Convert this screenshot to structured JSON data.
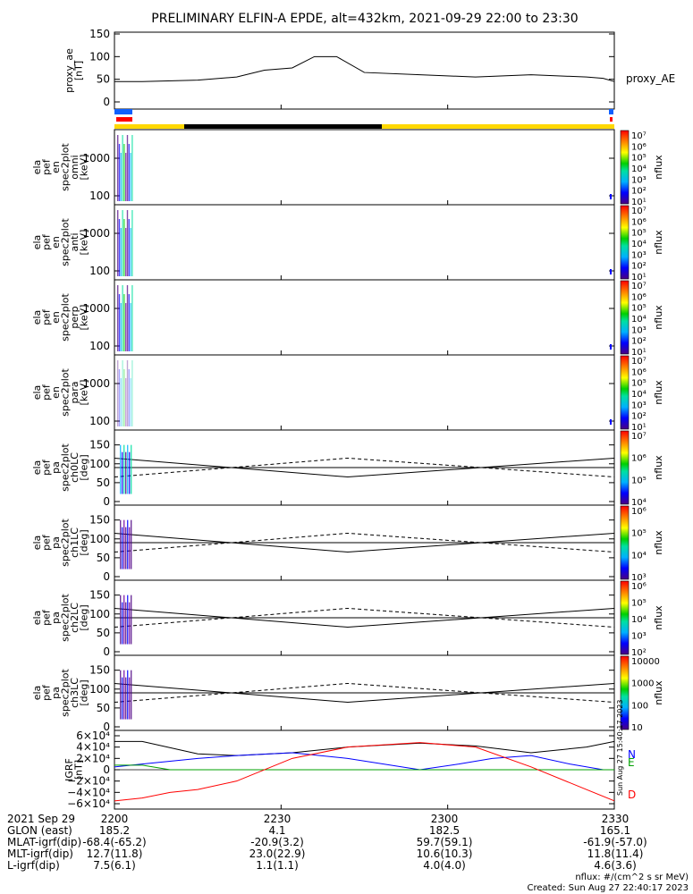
{
  "title": "PRELIMINARY ELFIN-A EPDE, alt=432km, 2021-09-29 22:00 to 23:30",
  "colors": {
    "black": "#000000",
    "blue": "#1060ff",
    "red": "#ff0000",
    "yellow": "#ffd800",
    "green": "#00a000",
    "n_blue": "#0000ff"
  },
  "panels": [
    {
      "id": "proxy_ae",
      "ylabel": [
        "proxy_ae",
        "[nT]"
      ],
      "side_label": "proxy_AE",
      "yticks": [
        "150",
        "100",
        "50",
        "0"
      ]
    },
    {
      "id": "en_omni",
      "ylabel": [
        "ela",
        "pef",
        "en",
        "spec2plot",
        "omni",
        "[keV]"
      ],
      "yticks": [
        "1000",
        "100"
      ],
      "cb_ticks": [
        "10⁷",
        "10⁶",
        "10⁵",
        "10⁴",
        "10³",
        "10²",
        "10¹"
      ],
      "cb_label": "nflux"
    },
    {
      "id": "en_anti",
      "ylabel": [
        "ela",
        "pef",
        "en",
        "spec2plot",
        "anti",
        "[keV]"
      ],
      "yticks": [
        "1000",
        "100"
      ],
      "cb_ticks": [
        "10⁷",
        "10⁶",
        "10⁵",
        "10⁴",
        "10³",
        "10²",
        "10¹"
      ],
      "cb_label": "nflux"
    },
    {
      "id": "en_perp",
      "ylabel": [
        "ela",
        "pef",
        "en",
        "spec2plot",
        "perp",
        "[keV]"
      ],
      "yticks": [
        "1000",
        "100"
      ],
      "cb_ticks": [
        "10⁷",
        "10⁶",
        "10⁵",
        "10⁴",
        "10³",
        "10²",
        "10¹"
      ],
      "cb_label": "nflux"
    },
    {
      "id": "en_para",
      "ylabel": [
        "ela",
        "pef",
        "en",
        "spec2plot",
        "para",
        "[keV]"
      ],
      "yticks": [
        "1000",
        "100"
      ],
      "cb_ticks": [
        "10⁷",
        "10⁶",
        "10⁵",
        "10⁴",
        "10³",
        "10²",
        "10¹"
      ],
      "cb_label": "nflux"
    },
    {
      "id": "pa_ch0",
      "ylabel": [
        "ela",
        "pef",
        "pa",
        "spec2plot",
        "ch0LC",
        "[deg]"
      ],
      "yticks": [
        "150",
        "100",
        "50",
        "0"
      ],
      "cb_ticks": [
        "10⁷",
        "10⁶",
        "10⁵",
        "10⁴"
      ],
      "cb_label": "nflux"
    },
    {
      "id": "pa_ch1",
      "ylabel": [
        "ela",
        "pef",
        "pa",
        "spec2plot",
        "ch1LC",
        "[deg]"
      ],
      "yticks": [
        "150",
        "100",
        "50",
        "0"
      ],
      "cb_ticks": [
        "10⁶",
        "10⁵",
        "10⁴",
        "10³"
      ],
      "cb_label": "nflux"
    },
    {
      "id": "pa_ch2",
      "ylabel": [
        "ela",
        "pef",
        "pa",
        "spec2plot",
        "ch2LC",
        "[deg]"
      ],
      "yticks": [
        "150",
        "100",
        "50",
        "0"
      ],
      "cb_ticks": [
        "10⁶",
        "10⁵",
        "10⁴",
        "10³",
        "10²"
      ],
      "cb_label": "nflux"
    },
    {
      "id": "pa_ch3",
      "ylabel": [
        "ela",
        "pef",
        "pa",
        "spec2plot",
        "ch3LC",
        "[deg]"
      ],
      "yticks": [
        "150",
        "100",
        "50",
        "0"
      ],
      "cb_ticks": [
        "10000",
        "1000",
        "100",
        "10"
      ],
      "cb_label": "nflux"
    },
    {
      "id": "igrf",
      "ylabel": [
        "IGRF",
        "[nT]"
      ],
      "yticks": [
        "6×10⁴",
        "4×10⁴",
        "2×10⁴",
        "0",
        "−2×10⁴",
        "−4×10⁴",
        "−6×10⁴"
      ],
      "legend": [
        "N",
        "E",
        "D"
      ]
    }
  ],
  "xticks": [
    "2200",
    "2230",
    "2300",
    "2330"
  ],
  "footer": {
    "rows": [
      [
        "2021 Sep 29",
        "2200",
        "2230",
        "2300",
        "2330"
      ],
      [
        "GLON (east)",
        "185.2",
        "4.1",
        "182.5",
        "165.1"
      ],
      [
        "MLAT-igrf(dip)",
        "-68.4(-65.2)",
        "-20.9(3.2)",
        "59.7(59.1)",
        "-61.9(-57.0)"
      ],
      [
        "MLT-igrf(dip)",
        "12.7(11.8)",
        "23.0(22.9)",
        "10.6(10.3)",
        "11.8(11.4)"
      ],
      [
        "L-igrf(dip)",
        "7.5(6.1)",
        "1.1(1.1)",
        "4.0(4.0)",
        "4.6(3.6)"
      ]
    ],
    "units": "nflux: #/(cm^2 s sr MeV)",
    "created": "Created: Sun Aug 27 22:40:17 2023",
    "vertical_stamp": "Sun Aug 27 15:40:17 2023"
  },
  "chart_data": {
    "type": "line",
    "x_range_minutes": [
      0,
      90
    ],
    "proxy_ae": {
      "x": [
        0,
        5,
        15,
        22,
        27,
        32,
        36,
        40,
        45,
        55,
        65,
        75,
        85,
        88,
        90
      ],
      "y": [
        45,
        45,
        48,
        55,
        70,
        75,
        100,
        100,
        65,
        60,
        55,
        60,
        55,
        52,
        45
      ],
      "ylim": [
        0,
        150
      ]
    },
    "pa_lines": {
      "x": [
        0,
        42,
        90
      ],
      "loss_cone": [
        115,
        65,
        115
      ],
      "anti_loss_cone": [
        65,
        115,
        65
      ],
      "ninety": 90
    },
    "igrf": {
      "ylim": [
        -60000,
        60000
      ],
      "series": [
        {
          "name": "total",
          "x": [
            0,
            5,
            15,
            22,
            32,
            42,
            55,
            65,
            75,
            85,
            90
          ],
          "y": [
            50000,
            50000,
            28000,
            25000,
            30000,
            40000,
            47000,
            42000,
            30000,
            40000,
            50000
          ]
        },
        {
          "name": "N",
          "x": [
            0,
            5,
            15,
            22,
            32,
            42,
            55,
            62,
            68,
            75,
            82,
            88,
            90
          ],
          "y": [
            5000,
            10000,
            20000,
            25000,
            30000,
            20000,
            0,
            10000,
            20000,
            25000,
            10000,
            0,
            0
          ]
        },
        {
          "name": "E",
          "x": [
            0,
            5,
            10,
            90
          ],
          "y": [
            8000,
            8000,
            0,
            0
          ]
        },
        {
          "name": "D",
          "x": [
            0,
            5,
            10,
            15,
            22,
            32,
            42,
            55,
            65,
            75,
            85,
            90
          ],
          "y": [
            -55000,
            -50000,
            -40000,
            -35000,
            -20000,
            20000,
            40000,
            48000,
            40000,
            5000,
            -35000,
            -55000
          ]
        }
      ]
    }
  }
}
